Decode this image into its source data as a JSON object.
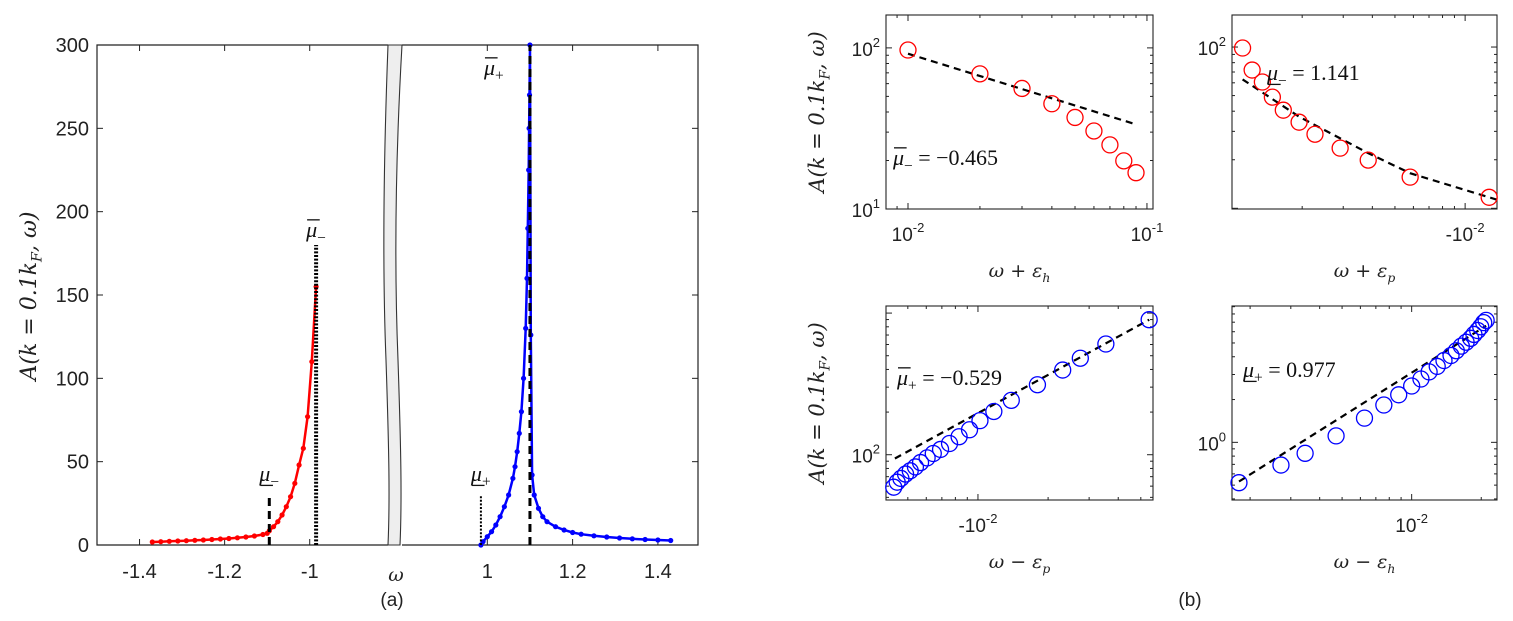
{
  "figure": {
    "caption_a": "(a)",
    "caption_b": "(b)"
  },
  "chart_data": [
    {
      "id": "a",
      "type": "line",
      "xlabel": "ω",
      "ylabel": {
        "main": "A(k = 0.1k",
        "sub": "F",
        "tail": ", ω)"
      },
      "xlim_left": [
        -1.5,
        -0.816
      ],
      "xlim_right": [
        0.8,
        1.494
      ],
      "axis_break": true,
      "ylim": [
        0,
        300
      ],
      "xticks": [
        {
          "v": -1.4,
          "label": "-1.4"
        },
        {
          "v": -1.2,
          "label": "-1.2"
        },
        {
          "v": -1,
          "label": "-1"
        },
        {
          "v": 1,
          "label": "1"
        },
        {
          "v": 1.2,
          "label": "1.2"
        },
        {
          "v": 1.4,
          "label": "1.4"
        }
      ],
      "yticks": [
        {
          "v": 0,
          "label": "0"
        },
        {
          "v": 50,
          "label": "50"
        },
        {
          "v": 100,
          "label": "100"
        },
        {
          "v": 150,
          "label": "150"
        },
        {
          "v": 200,
          "label": "200"
        },
        {
          "v": 250,
          "label": "250"
        },
        {
          "v": 300,
          "label": "300"
        }
      ],
      "series": [
        {
          "color": "#ff0000",
          "x": [
            -1.37,
            -1.35,
            -1.33,
            -1.31,
            -1.29,
            -1.27,
            -1.25,
            -1.23,
            -1.21,
            -1.19,
            -1.17,
            -1.15,
            -1.13,
            -1.11,
            -1.1,
            -1.095,
            -1.085,
            -1.075,
            -1.065,
            -1.055,
            -1.045,
            -1.035,
            -1.025,
            -1.015,
            -1.005,
            -0.995,
            -0.985
          ],
          "y": [
            1.8,
            2.0,
            2.2,
            2.4,
            2.6,
            2.8,
            3.0,
            3.3,
            3.6,
            3.9,
            4.3,
            4.8,
            5.4,
            6.3,
            7.0,
            8.5,
            11,
            14,
            18,
            23,
            29,
            37,
            48,
            58,
            77,
            110,
            155
          ]
        },
        {
          "color": "#0000ff",
          "x": [
            0.985,
            0.99,
            1.0,
            1.01,
            1.02,
            1.03,
            1.04,
            1.05,
            1.06,
            1.065,
            1.07,
            1.075,
            1.08,
            1.085,
            1.09,
            1.093,
            1.095,
            1.097,
            1.098,
            1.099,
            1.1,
            1.102,
            1.105,
            1.11,
            1.12,
            1.13,
            1.14,
            1.16,
            1.18,
            1.2,
            1.22,
            1.25,
            1.28,
            1.31,
            1.34,
            1.37,
            1.4,
            1.43
          ],
          "y": [
            0,
            2,
            5,
            8,
            12,
            17,
            23,
            30,
            40,
            47,
            56,
            67,
            80,
            100,
            130,
            160,
            190,
            225,
            250,
            270,
            300,
            126,
            42,
            30,
            22,
            17,
            14,
            11,
            9,
            7.5,
            6.5,
            5.5,
            4.8,
            4.2,
            3.7,
            3.3,
            3.0,
            2.7
          ]
        }
      ],
      "markers": [
        {
          "x": -1.095,
          "y": 30,
          "style": "dashed",
          "label": {
            "sym": "μ",
            "sub": "−",
            "bar": "under"
          }
        },
        {
          "x": -0.985,
          "y": 180,
          "style": "dotted-thick",
          "label": {
            "sym": "μ",
            "sub": "−",
            "bar": "over"
          }
        },
        {
          "x": 0.985,
          "y": 30,
          "style": "dotted",
          "label": {
            "sym": "μ",
            "sub": "+",
            "bar": "under"
          }
        },
        {
          "x": 1.1,
          "y": 300,
          "style": "dashed",
          "label": {
            "sym": "μ",
            "sub": "+",
            "bar": "over"
          }
        }
      ]
    },
    {
      "id": "b1",
      "type": "scatter",
      "scale": "loglog",
      "xlabel": {
        "main": "ω + ε",
        "sub": "h"
      },
      "ylabel": {
        "main": "A(k = 0.1k",
        "sub": "F",
        "tail": ", ω)"
      },
      "xlim": [
        0.00809,
        0.106
      ],
      "ylim": [
        10,
        160
      ],
      "xticks": [
        {
          "v": 0.01,
          "base": "10",
          "exp": "-2"
        },
        {
          "v": 0.1,
          "base": "10",
          "exp": "-1"
        }
      ],
      "yticks": [
        {
          "v": 10,
          "base": "10",
          "exp": "1"
        },
        {
          "v": 100,
          "base": "10",
          "exp": "2"
        }
      ],
      "color": "#ff0000",
      "x": [
        0.01,
        0.02,
        0.03,
        0.04,
        0.05,
        0.06,
        0.07,
        0.08,
        0.09
      ],
      "y": [
        97,
        69,
        56,
        45,
        37,
        30.5,
        25,
        19.9,
        16.8
      ],
      "fit": {
        "x": [
          0.01,
          0.09
        ],
        "y": [
          92,
          33.5
        ]
      },
      "annotation": {
        "sym": "μ",
        "sub": "−",
        "bar": "over",
        "text": " = −0.465"
      }
    },
    {
      "id": "b2",
      "type": "scatter",
      "scale": "loglog",
      "xlabel": {
        "main": "ω + ε",
        "sub": "p"
      },
      "ylabel": null,
      "xlim": [
        0.001,
        0.0137
      ],
      "ylim": [
        9.9,
        158
      ],
      "xticks": [
        {
          "v": 0.01,
          "base": "-10",
          "exp": "-2"
        }
      ],
      "yticks": [
        {
          "v": 100,
          "base": "10",
          "exp": "2"
        }
      ],
      "color": "#ff0000",
      "x": [
        0.00111,
        0.00122,
        0.00135,
        0.00149,
        0.00166,
        0.00194,
        0.00227,
        0.00291,
        0.00384,
        0.00581,
        0.01268
      ],
      "y": [
        98.6,
        72,
        60.7,
        48.9,
        40.6,
        34.2,
        28.8,
        23.6,
        19.9,
        15.6,
        11.7
      ],
      "fit": {
        "x": [
          0.00111,
          0.00194,
          0.00384,
          0.00581,
          0.0137
        ],
        "y": [
          63,
          37,
          22,
          16.5,
          11.3
        ]
      },
      "annotation": {
        "sym": "μ",
        "sub": "−",
        "bar": "under",
        "text": " = 1.141"
      }
    },
    {
      "id": "b3",
      "type": "scatter",
      "scale": "loglog",
      "xlabel": {
        "main": "ω − ε",
        "sub": "p"
      },
      "ylabel": {
        "main": "A(k = 0.1k",
        "sub": "F",
        "tail": ", ω)"
      },
      "xlim": [
        0.00403,
        0.0564
      ],
      "ylim": [
        47.9,
        1122
      ],
      "xticks": [
        {
          "v": 0.01,
          "base": "-10",
          "exp": "-2"
        }
      ],
      "yticks": [
        {
          "v": 100,
          "base": "10",
          "exp": "2"
        }
      ],
      "color": "#0000ff",
      "x": [
        0.0543,
        0.0354,
        0.0275,
        0.0231,
        0.018,
        0.0139,
        0.0117,
        0.0102,
        0.0092,
        0.0083,
        0.00755,
        0.00691,
        0.00643,
        0.00605,
        0.00567,
        0.00539,
        0.00512,
        0.00489,
        0.00467,
        0.0045,
        0.00435
      ],
      "y": [
        898,
        605,
        480,
        396,
        312,
        242,
        202,
        174,
        150,
        134,
        120,
        109,
        102,
        95,
        88,
        82,
        77,
        73,
        68,
        64,
        59
      ],
      "fit": {
        "x": [
          0.0044,
          0.0543
        ],
        "y": [
          94,
          898
        ]
      },
      "annotation": {
        "sym": "μ",
        "sub": "+",
        "bar": "over",
        "text": " = −0.529"
      }
    },
    {
      "id": "b4",
      "type": "scatter",
      "scale": "loglog",
      "xlabel": {
        "main": "ω − ε",
        "sub": "h"
      },
      "ylabel": null,
      "xlim": [
        0.00167,
        0.0234
      ],
      "ylim": [
        0.393,
        9.1
      ],
      "xticks": [
        {
          "v": 0.01,
          "base": "10",
          "exp": "-2"
        }
      ],
      "yticks": [
        {
          "v": 1,
          "base": "10",
          "exp": "0"
        }
      ],
      "color": "#0000ff",
      "x": [
        0.00179,
        0.00272,
        0.00346,
        0.00471,
        0.00625,
        0.00758,
        0.00879,
        0.01,
        0.01097,
        0.0119,
        0.0129,
        0.0138,
        0.0148,
        0.0156,
        0.0164,
        0.0172,
        0.018,
        0.0186,
        0.0193,
        0.0199,
        0.0205,
        0.021
      ],
      "y": [
        0.52,
        0.692,
        0.837,
        1.11,
        1.48,
        1.83,
        2.16,
        2.49,
        2.79,
        3.13,
        3.42,
        3.76,
        4.08,
        4.41,
        4.75,
        5.06,
        5.39,
        5.74,
        6.12,
        6.5,
        6.95,
        7.21
      ],
      "fit": {
        "x": [
          0.00179,
          0.021
        ],
        "y": [
          0.53,
          6.6
        ]
      },
      "annotation": {
        "sym": "μ",
        "sub": "+",
        "bar": "under",
        "text": " = 0.977"
      }
    }
  ]
}
